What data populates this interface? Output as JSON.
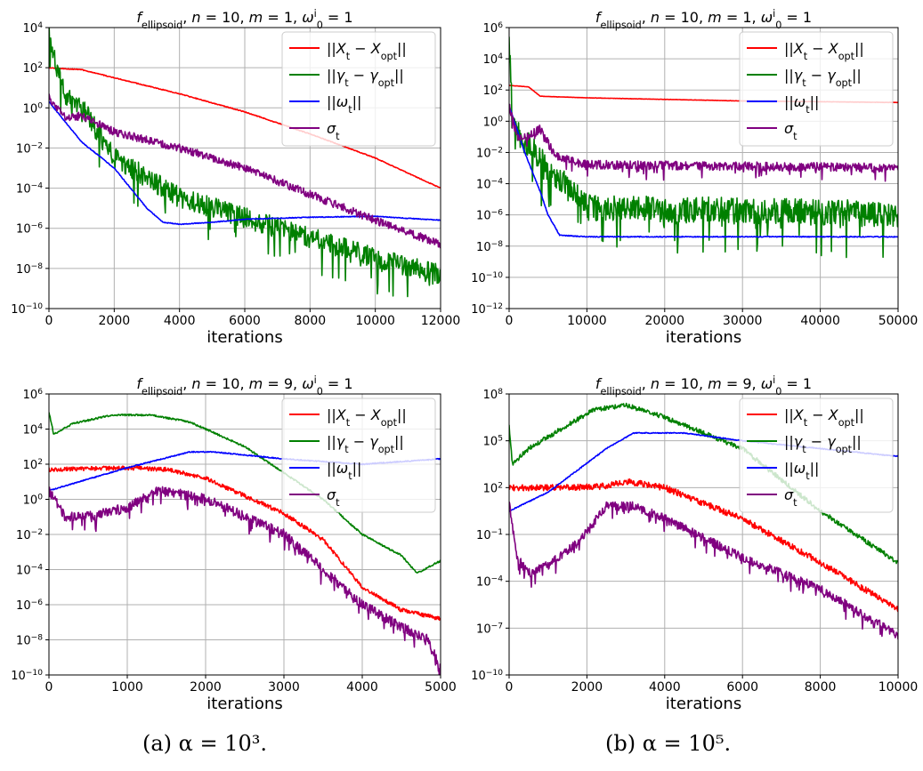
{
  "captions": [
    "(a) α = 10³.",
    "(b) α = 10⁵."
  ],
  "colors": {
    "x": "#ff0000",
    "gamma": "#008000",
    "omega": "#0000ff",
    "sigma": "#800080",
    "grid": "#b0b0b0"
  },
  "chart_data": [
    {
      "type": "line",
      "title": "f_ellipsoid, n = 10, m = 1, ω_0^i = 1",
      "xlabel": "iterations",
      "ylabel": "",
      "log_y": true,
      "xlim": [
        0,
        12000
      ],
      "ylim_exp": [
        -10,
        4
      ],
      "x_ticks": [
        "0",
        "2000",
        "4000",
        "6000",
        "8000",
        "10000",
        "12000"
      ],
      "y_ticks_exp": [
        -10,
        -8,
        -6,
        -4,
        -2,
        0,
        2,
        4
      ],
      "grid": true,
      "legend": "top-right",
      "series": [
        {
          "name": "||X_t − X_opt||",
          "color": "#ff0000",
          "noise": 0.02,
          "points": [
            [
              0,
              2
            ],
            [
              1000,
              1.9
            ],
            [
              2000,
              1.5
            ],
            [
              4000,
              0.7
            ],
            [
              6000,
              -0.2
            ],
            [
              8000,
              -1.3
            ],
            [
              10000,
              -2.5
            ],
            [
              12000,
              -4
            ]
          ]
        },
        {
          "name": "||γ_t − γ_opt||",
          "color": "#008000",
          "noise": 0.55,
          "points": [
            [
              0,
              4
            ],
            [
              150,
              2.5
            ],
            [
              500,
              0.5
            ],
            [
              1000,
              0
            ],
            [
              2000,
              -2.5
            ],
            [
              4000,
              -4.5
            ],
            [
              6000,
              -5.5
            ],
            [
              8000,
              -6.5
            ],
            [
              10000,
              -7.5
            ],
            [
              12000,
              -8.3
            ]
          ]
        },
        {
          "name": "||ω_t||",
          "color": "#0000ff",
          "noise": 0.02,
          "points": [
            [
              0,
              0.3
            ],
            [
              1000,
              -1.7
            ],
            [
              2000,
              -3
            ],
            [
              3000,
              -5
            ],
            [
              3500,
              -5.7
            ],
            [
              4000,
              -5.8
            ],
            [
              5000,
              -5.7
            ],
            [
              6000,
              -5.55
            ],
            [
              8000,
              -5.45
            ],
            [
              10000,
              -5.4
            ],
            [
              12000,
              -5.6
            ]
          ]
        },
        {
          "name": "σ_t",
          "color": "#800080",
          "noise": 0.2,
          "points": [
            [
              0,
              0.5
            ],
            [
              500,
              -0.5
            ],
            [
              1000,
              -0.4
            ],
            [
              2000,
              -1.2
            ],
            [
              4000,
              -2
            ],
            [
              6000,
              -3
            ],
            [
              8000,
              -4.3
            ],
            [
              10000,
              -5.6
            ],
            [
              12000,
              -6.8
            ]
          ]
        }
      ]
    },
    {
      "type": "line",
      "title": "f_ellipsoid, n = 10, m = 1, ω_0^i = 1",
      "xlabel": "iterations",
      "ylabel": "",
      "log_y": true,
      "xlim": [
        0,
        50000
      ],
      "ylim_exp": [
        -12,
        6
      ],
      "x_ticks": [
        "0",
        "10000",
        "20000",
        "30000",
        "40000",
        "50000"
      ],
      "y_ticks_exp": [
        -12,
        -10,
        -8,
        -6,
        -4,
        -2,
        0,
        2,
        4,
        6
      ],
      "grid": true,
      "legend": "top-right",
      "series": [
        {
          "name": "||X_t − X_opt||",
          "color": "#ff0000",
          "noise": 0.01,
          "points": [
            [
              0,
              2.3
            ],
            [
              2500,
              2.2
            ],
            [
              4000,
              1.6
            ],
            [
              10000,
              1.5
            ],
            [
              30000,
              1.3
            ],
            [
              50000,
              1.2
            ]
          ]
        },
        {
          "name": "||γ_t − γ_opt||",
          "color": "#008000",
          "noise": 0.9,
          "points": [
            [
              0,
              5.5
            ],
            [
              400,
              0
            ],
            [
              1500,
              -1
            ],
            [
              4000,
              -2.5
            ],
            [
              7000,
              -4
            ],
            [
              10000,
              -5.6
            ],
            [
              50000,
              -6
            ]
          ]
        },
        {
          "name": "||ω_t||",
          "color": "#0000ff",
          "noise": 0.03,
          "points": [
            [
              0,
              1
            ],
            [
              2000,
              -2
            ],
            [
              4000,
              -4.5
            ],
            [
              5000,
              -6
            ],
            [
              6500,
              -7.3
            ],
            [
              10000,
              -7.4
            ],
            [
              50000,
              -7.4
            ]
          ]
        },
        {
          "name": "σ_t",
          "color": "#800080",
          "noise": 0.3,
          "points": [
            [
              0,
              1
            ],
            [
              1000,
              -1
            ],
            [
              2500,
              -1
            ],
            [
              4000,
              -0.5
            ],
            [
              6000,
              -2.3
            ],
            [
              10000,
              -2.8
            ],
            [
              50000,
              -3
            ]
          ]
        }
      ]
    },
    {
      "type": "line",
      "title": "f_ellipsoid, n = 10, m = 9, ω_0^i = 1",
      "xlabel": "iterations",
      "ylabel": "",
      "log_y": true,
      "xlim": [
        0,
        5000
      ],
      "ylim_exp": [
        -10,
        6
      ],
      "x_ticks": [
        "0",
        "1000",
        "2000",
        "3000",
        "4000",
        "5000"
      ],
      "y_ticks_exp": [
        -10,
        -8,
        -6,
        -4,
        -2,
        0,
        2,
        4,
        6
      ],
      "grid": true,
      "legend": "top-right",
      "series": [
        {
          "name": "||X_t − X_opt||",
          "color": "#ff0000",
          "noise": 0.12,
          "points": [
            [
              0,
              1.7
            ],
            [
              1000,
              1.8
            ],
            [
              1500,
              1.7
            ],
            [
              2000,
              1.2
            ],
            [
              3000,
              -0.8
            ],
            [
              3500,
              -2.3
            ],
            [
              4000,
              -5
            ],
            [
              4500,
              -6.3
            ],
            [
              5000,
              -6.8
            ]
          ]
        },
        {
          "name": "||γ_t − γ_opt||",
          "color": "#008000",
          "noise": 0.05,
          "points": [
            [
              0,
              5
            ],
            [
              60,
              3.7
            ],
            [
              300,
              4.3
            ],
            [
              800,
              4.8
            ],
            [
              1300,
              4.8
            ],
            [
              1800,
              4.4
            ],
            [
              2500,
              3
            ],
            [
              3000,
              1.5
            ],
            [
              3500,
              0
            ],
            [
              4000,
              -2
            ],
            [
              4500,
              -3.2
            ],
            [
              4700,
              -4.2
            ],
            [
              5000,
              -3.5
            ]
          ]
        },
        {
          "name": "||ω_t||",
          "color": "#0000ff",
          "noise": 0.03,
          "points": [
            [
              0,
              0.5
            ],
            [
              1000,
              1.8
            ],
            [
              1800,
              2.7
            ],
            [
              2100,
              2.7
            ],
            [
              3000,
              2.3
            ],
            [
              4000,
              2
            ],
            [
              5000,
              2.3
            ]
          ]
        },
        {
          "name": "σ_t",
          "color": "#800080",
          "noise": 0.3,
          "points": [
            [
              0,
              0.5
            ],
            [
              200,
              -1
            ],
            [
              500,
              -1
            ],
            [
              1000,
              -0.5
            ],
            [
              1400,
              0.5
            ],
            [
              2000,
              0
            ],
            [
              3000,
              -2
            ],
            [
              3500,
              -4
            ],
            [
              4000,
              -6
            ],
            [
              4500,
              -7.3
            ],
            [
              4850,
              -8
            ],
            [
              5000,
              -9.7
            ]
          ]
        }
      ]
    },
    {
      "type": "line",
      "title": "f_ellipsoid, n = 10, m = 9, ω_0^i = 1",
      "xlabel": "iterations",
      "ylabel": "",
      "log_y": true,
      "xlim": [
        0,
        10000
      ],
      "ylim_exp": [
        -10,
        8
      ],
      "x_ticks": [
        "0",
        "2000",
        "4000",
        "6000",
        "8000",
        "10000"
      ],
      "y_ticks_exp": [
        -10,
        -7,
        -4,
        -1,
        2,
        5,
        8
      ],
      "grid": true,
      "legend": "top-right",
      "series": [
        {
          "name": "||X_t − X_opt||",
          "color": "#ff0000",
          "noise": 0.2,
          "points": [
            [
              0,
              2
            ],
            [
              1500,
              2
            ],
            [
              2500,
              2.1
            ],
            [
              3000,
              2.4
            ],
            [
              4000,
              2
            ],
            [
              6000,
              0
            ],
            [
              8000,
              -2.8
            ],
            [
              10000,
              -5.8
            ]
          ]
        },
        {
          "name": "||γ_t − γ_opt||",
          "color": "#008000",
          "noise": 0.15,
          "points": [
            [
              0,
              6
            ],
            [
              80,
              3.5
            ],
            [
              500,
              4.5
            ],
            [
              1500,
              6
            ],
            [
              2200,
              7
            ],
            [
              3000,
              7.3
            ],
            [
              4000,
              6.5
            ],
            [
              6000,
              4.5
            ],
            [
              8000,
              0.5
            ],
            [
              10000,
              -2.8
            ]
          ]
        },
        {
          "name": "||ω_t||",
          "color": "#0000ff",
          "noise": 0.03,
          "points": [
            [
              0,
              0.5
            ],
            [
              1000,
              1.7
            ],
            [
              2500,
              4.5
            ],
            [
              3200,
              5.5
            ],
            [
              4500,
              5.5
            ],
            [
              6000,
              5
            ],
            [
              8000,
              4.5
            ],
            [
              10000,
              4
            ]
          ]
        },
        {
          "name": "σ_t",
          "color": "#800080",
          "noise": 0.3,
          "points": [
            [
              0,
              1
            ],
            [
              200,
              -2.5
            ],
            [
              500,
              -3.5
            ],
            [
              1000,
              -3
            ],
            [
              1800,
              -1.5
            ],
            [
              2500,
              0.8
            ],
            [
              3200,
              0.8
            ],
            [
              4000,
              0
            ],
            [
              6000,
              -2.5
            ],
            [
              8000,
              -4.5
            ],
            [
              10000,
              -7.5
            ]
          ]
        }
      ]
    }
  ]
}
